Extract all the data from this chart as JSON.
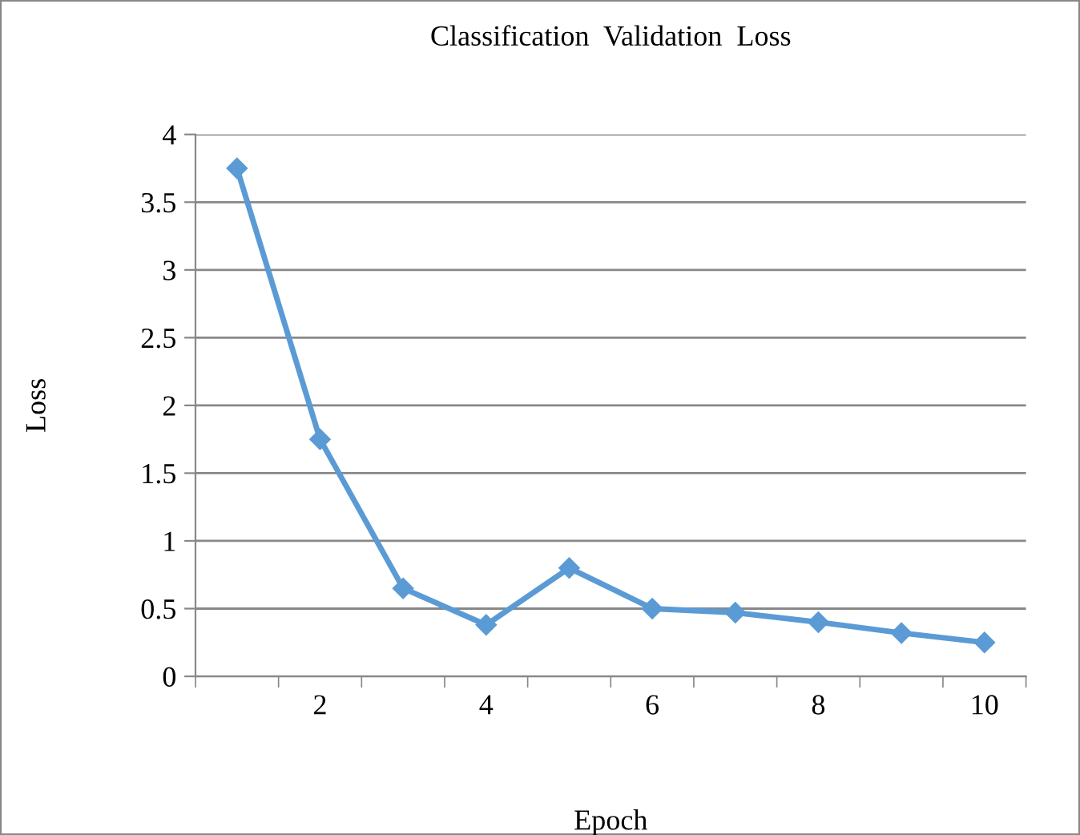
{
  "chart_data": {
    "type": "line",
    "title": "Classification  Validation  Loss",
    "xlabel": "Epoch",
    "ylabel": "Loss",
    "categories": [
      null,
      "2",
      null,
      "4",
      null,
      "6",
      null,
      "8",
      null,
      "10"
    ],
    "series": [
      {
        "color": "#5b9bd5",
        "values": [
          3.75,
          1.75,
          0.65,
          0.38,
          0.8,
          0.5,
          0.47,
          0.4,
          0.32,
          0.25
        ]
      }
    ],
    "ylim": [
      0,
      4
    ],
    "yticks": [
      0,
      0.5,
      1,
      1.5,
      2,
      2.5,
      3,
      3.5,
      4
    ],
    "grid": "y",
    "marker": "diamond",
    "line_style": "solid",
    "legend": false
  }
}
